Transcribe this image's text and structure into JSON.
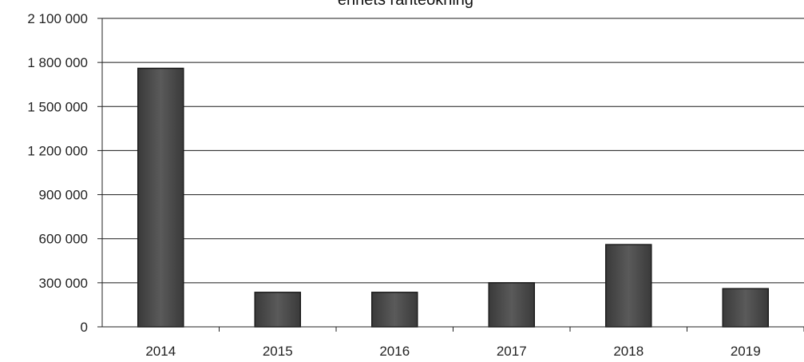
{
  "chart_data": {
    "type": "bar",
    "title": "ennets ränteökning",
    "xlabel": "",
    "ylabel": "",
    "categories": [
      "2014",
      "2015",
      "2016",
      "2017",
      "2018",
      "2019"
    ],
    "values": [
      1760000,
      235000,
      235000,
      300000,
      560000,
      260000
    ],
    "ylim": [
      0,
      2100000
    ],
    "yticks": [
      0,
      300000,
      600000,
      900000,
      1200000,
      1500000,
      1800000,
      2100000
    ],
    "ytick_labels": [
      "0",
      "300 000",
      "600 000",
      "900 000",
      "1 200 000",
      "1 500 000",
      "1 800 000",
      "2 100 000"
    ],
    "grid": true,
    "legend": "none",
    "bar_color": "#4a4a4a",
    "grid_color": "#1a1a1a"
  }
}
